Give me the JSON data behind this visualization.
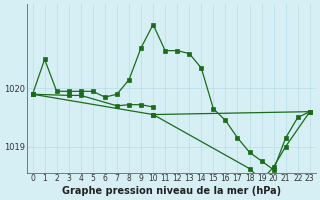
{
  "xlabel": "Graphe pression niveau de la mer (hPa)",
  "line_color": "#1a6b1a",
  "bg_color": "#d6eff5",
  "grid_color": "#b8dde6",
  "ylim": [
    1018.55,
    1021.45
  ],
  "xlim": [
    -0.5,
    23.5
  ],
  "yticks": [
    1019,
    1020
  ],
  "xticks": [
    0,
    1,
    2,
    3,
    4,
    5,
    6,
    7,
    8,
    9,
    10,
    11,
    12,
    13,
    14,
    15,
    16,
    17,
    18,
    19,
    20,
    21,
    22,
    23
  ],
  "line1_x": [
    0,
    1,
    2,
    3,
    4,
    5,
    6,
    7,
    8,
    9,
    10,
    11,
    12,
    13,
    14,
    15,
    16,
    17,
    18,
    19,
    20,
    21,
    22,
    23
  ],
  "line1_y": [
    1019.9,
    1020.5,
    1019.95,
    1019.95,
    1019.95,
    1019.95,
    1019.85,
    1019.9,
    1020.15,
    1020.7,
    1021.1,
    1020.65,
    1020.65,
    1020.6,
    1020.35,
    1019.65,
    1019.45,
    1019.15,
    1018.9,
    1018.75,
    1018.6,
    1019.15,
    1019.5,
    1019.6
  ],
  "line2_x": [
    0,
    3,
    4,
    7,
    8,
    9,
    10
  ],
  "line2_y": [
    1019.9,
    1019.88,
    1019.88,
    1019.7,
    1019.72,
    1019.72,
    1019.68
  ],
  "line3_x": [
    0,
    10,
    18,
    19,
    20,
    21,
    23
  ],
  "line3_y": [
    1019.9,
    1019.55,
    1018.62,
    1018.42,
    1018.65,
    1019.0,
    1019.6
  ],
  "line4_x": [
    10,
    23
  ],
  "line4_y": [
    1019.55,
    1019.6
  ],
  "marker_size": 2.5,
  "lw": 0.9,
  "xlabel_fontsize": 7,
  "tick_fontsize": 6
}
